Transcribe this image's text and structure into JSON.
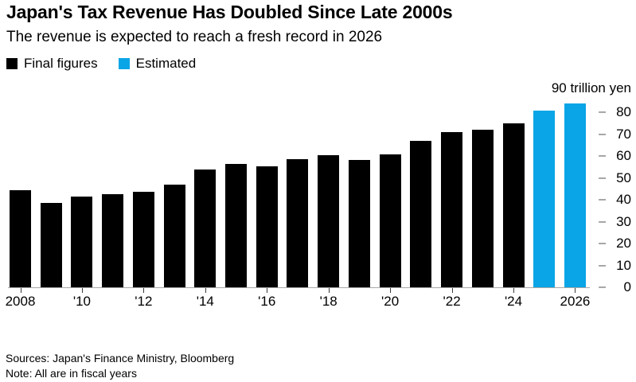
{
  "header": {
    "title": "Japan's Tax Revenue Has Doubled Since Late 2000s",
    "subtitle": "The revenue is expected to reach a fresh record in 2026"
  },
  "legend": {
    "items": [
      {
        "label": "Final figures",
        "color": "#000000"
      },
      {
        "label": "Estimated",
        "color": "#0aa5e6"
      }
    ]
  },
  "colors": {
    "final": "#000000",
    "estimated": "#0aa5e6",
    "axis_line": "#a8a8a8",
    "tick_dash": "#58595b"
  },
  "chart_data": {
    "type": "bar",
    "title": "Japan's Tax Revenue Has Doubled Since Late 2000s",
    "subtitle": "The revenue is expected to reach a fresh record in 2026",
    "x": [
      2008,
      2009,
      2010,
      2011,
      2012,
      2013,
      2014,
      2015,
      2016,
      2017,
      2018,
      2019,
      2020,
      2021,
      2022,
      2023,
      2024,
      2025,
      2026
    ],
    "values": [
      44.3,
      38.7,
      41.5,
      42.8,
      43.9,
      47.0,
      54.0,
      56.3,
      55.5,
      58.8,
      60.4,
      58.4,
      60.8,
      67.0,
      71.1,
      72.1,
      75.2,
      81.0,
      84.0
    ],
    "estimated": [
      false,
      false,
      false,
      false,
      false,
      false,
      false,
      false,
      false,
      false,
      false,
      false,
      false,
      false,
      false,
      false,
      false,
      true,
      true
    ],
    "unit_label": "90 trillion yen",
    "ylabel": "trillion yen",
    "ylim": [
      0,
      90
    ],
    "yticks": [
      0,
      10,
      20,
      30,
      40,
      50,
      60,
      70,
      80
    ],
    "ytick_side": "right",
    "grid": false,
    "legend_position": "top-left",
    "xticks": [
      {
        "index": 0,
        "label": "2008"
      },
      {
        "index": 2,
        "label": "'10"
      },
      {
        "index": 4,
        "label": "'12"
      },
      {
        "index": 6,
        "label": "'14"
      },
      {
        "index": 8,
        "label": "'16"
      },
      {
        "index": 10,
        "label": "'18"
      },
      {
        "index": 12,
        "label": "'20"
      },
      {
        "index": 14,
        "label": "'22"
      },
      {
        "index": 16,
        "label": "'24"
      },
      {
        "index": 18,
        "label": "2026"
      }
    ]
  },
  "footer": {
    "sources": "Sources: Japan's Finance Ministry, Bloomberg",
    "note": "Note: All are in fiscal years"
  }
}
